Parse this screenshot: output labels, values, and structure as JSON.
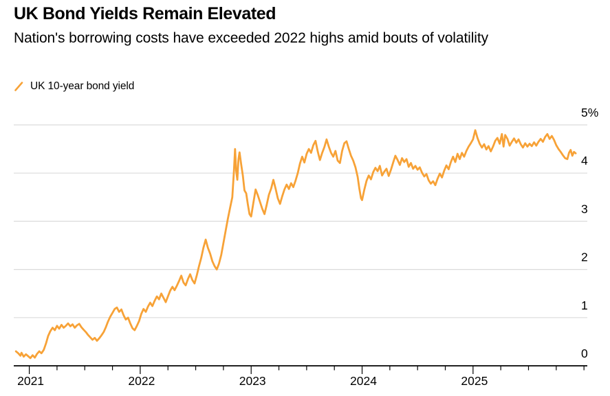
{
  "header": {
    "title": "UK Bond Yields Remain Elevated",
    "subtitle": "Nation's borrowing costs have exceeded 2022 highs amid bouts of volatility"
  },
  "legend": {
    "items": [
      {
        "label": "UK 10-year bond yield",
        "color": "#F7A237",
        "icon": "line-slash-icon"
      }
    ]
  },
  "colors": {
    "line": "#F7A237",
    "gridline": "#DBDBDB",
    "axis": "#000000",
    "text": "#000000",
    "background": "#FFFFFF"
  },
  "chart_data": {
    "type": "line",
    "title": "UK Bond Yields Remain Elevated",
    "subtitle": "Nation's borrowing costs have exceeded 2022 highs amid bouts of volatility",
    "xlabel": "",
    "ylabel": "",
    "xlim": [
      2020.86,
      2026.03
    ],
    "ylim": [
      0,
      5
    ],
    "grid": "horizontal",
    "legend_position": "top-left",
    "y_ticks": [
      {
        "value": 5,
        "label": "5%"
      },
      {
        "value": 4,
        "label": "4"
      },
      {
        "value": 3,
        "label": "3"
      },
      {
        "value": 2,
        "label": "2"
      },
      {
        "value": 1,
        "label": "1"
      },
      {
        "value": 0,
        "label": "0"
      }
    ],
    "x_ticks": [
      {
        "value": 2021,
        "label": "2021"
      },
      {
        "value": 2022,
        "label": "2022"
      },
      {
        "value": 2023,
        "label": "2023"
      },
      {
        "value": 2024,
        "label": "2024"
      },
      {
        "value": 2025,
        "label": "2025"
      }
    ],
    "x_minor_interval": 0.25,
    "x_tick_range": [
      2021,
      2026
    ],
    "series": [
      {
        "name": "UK 10-year bond yield",
        "color": "#F7A237",
        "points": [
          [
            2020.88,
            0.3
          ],
          [
            2020.9,
            0.26
          ],
          [
            2020.92,
            0.21
          ],
          [
            2020.93,
            0.27
          ],
          [
            2020.95,
            0.19
          ],
          [
            2020.97,
            0.24
          ],
          [
            2020.99,
            0.2
          ],
          [
            2021.01,
            0.16
          ],
          [
            2021.03,
            0.22
          ],
          [
            2021.05,
            0.17
          ],
          [
            2021.07,
            0.25
          ],
          [
            2021.09,
            0.3
          ],
          [
            2021.11,
            0.26
          ],
          [
            2021.13,
            0.33
          ],
          [
            2021.15,
            0.46
          ],
          [
            2021.17,
            0.62
          ],
          [
            2021.19,
            0.72
          ],
          [
            2021.21,
            0.79
          ],
          [
            2021.23,
            0.74
          ],
          [
            2021.25,
            0.83
          ],
          [
            2021.27,
            0.77
          ],
          [
            2021.29,
            0.85
          ],
          [
            2021.31,
            0.79
          ],
          [
            2021.33,
            0.83
          ],
          [
            2021.35,
            0.88
          ],
          [
            2021.37,
            0.82
          ],
          [
            2021.39,
            0.86
          ],
          [
            2021.41,
            0.79
          ],
          [
            2021.43,
            0.84
          ],
          [
            2021.45,
            0.87
          ],
          [
            2021.47,
            0.8
          ],
          [
            2021.49,
            0.75
          ],
          [
            2021.51,
            0.7
          ],
          [
            2021.53,
            0.64
          ],
          [
            2021.55,
            0.59
          ],
          [
            2021.57,
            0.54
          ],
          [
            2021.59,
            0.58
          ],
          [
            2021.61,
            0.52
          ],
          [
            2021.63,
            0.57
          ],
          [
            2021.65,
            0.63
          ],
          [
            2021.67,
            0.7
          ],
          [
            2021.69,
            0.8
          ],
          [
            2021.71,
            0.92
          ],
          [
            2021.73,
            1.02
          ],
          [
            2021.75,
            1.1
          ],
          [
            2021.77,
            1.18
          ],
          [
            2021.79,
            1.21
          ],
          [
            2021.81,
            1.12
          ],
          [
            2021.83,
            1.17
          ],
          [
            2021.85,
            1.05
          ],
          [
            2021.87,
            0.96
          ],
          [
            2021.89,
            1.0
          ],
          [
            2021.91,
            0.88
          ],
          [
            2021.93,
            0.78
          ],
          [
            2021.95,
            0.74
          ],
          [
            2021.97,
            0.83
          ],
          [
            2021.99,
            0.93
          ],
          [
            2022.01,
            1.08
          ],
          [
            2022.03,
            1.18
          ],
          [
            2022.05,
            1.12
          ],
          [
            2022.07,
            1.23
          ],
          [
            2022.09,
            1.31
          ],
          [
            2022.11,
            1.24
          ],
          [
            2022.13,
            1.35
          ],
          [
            2022.15,
            1.44
          ],
          [
            2022.17,
            1.38
          ],
          [
            2022.19,
            1.5
          ],
          [
            2022.21,
            1.41
          ],
          [
            2022.23,
            1.32
          ],
          [
            2022.25,
            1.44
          ],
          [
            2022.27,
            1.56
          ],
          [
            2022.29,
            1.64
          ],
          [
            2022.31,
            1.57
          ],
          [
            2022.33,
            1.66
          ],
          [
            2022.35,
            1.76
          ],
          [
            2022.37,
            1.87
          ],
          [
            2022.39,
            1.73
          ],
          [
            2022.41,
            1.67
          ],
          [
            2022.43,
            1.8
          ],
          [
            2022.45,
            1.9
          ],
          [
            2022.47,
            1.78
          ],
          [
            2022.49,
            1.71
          ],
          [
            2022.51,
            1.88
          ],
          [
            2022.53,
            2.07
          ],
          [
            2022.55,
            2.24
          ],
          [
            2022.57,
            2.45
          ],
          [
            2022.59,
            2.62
          ],
          [
            2022.61,
            2.45
          ],
          [
            2022.63,
            2.33
          ],
          [
            2022.65,
            2.17
          ],
          [
            2022.67,
            2.07
          ],
          [
            2022.69,
            2.0
          ],
          [
            2022.71,
            2.12
          ],
          [
            2022.73,
            2.3
          ],
          [
            2022.75,
            2.55
          ],
          [
            2022.77,
            2.8
          ],
          [
            2022.79,
            3.05
          ],
          [
            2022.81,
            3.28
          ],
          [
            2022.83,
            3.5
          ],
          [
            2022.845,
            4.05
          ],
          [
            2022.855,
            4.5
          ],
          [
            2022.865,
            4.05
          ],
          [
            2022.875,
            3.86
          ],
          [
            2022.885,
            4.28
          ],
          [
            2022.895,
            4.43
          ],
          [
            2022.91,
            4.18
          ],
          [
            2022.925,
            3.95
          ],
          [
            2022.94,
            3.64
          ],
          [
            2022.955,
            3.58
          ],
          [
            2022.97,
            3.35
          ],
          [
            2022.985,
            3.15
          ],
          [
            2023.0,
            3.1
          ],
          [
            2023.02,
            3.38
          ],
          [
            2023.04,
            3.66
          ],
          [
            2023.06,
            3.54
          ],
          [
            2023.08,
            3.4
          ],
          [
            2023.1,
            3.26
          ],
          [
            2023.12,
            3.15
          ],
          [
            2023.14,
            3.34
          ],
          [
            2023.16,
            3.55
          ],
          [
            2023.18,
            3.68
          ],
          [
            2023.2,
            3.86
          ],
          [
            2023.22,
            3.68
          ],
          [
            2023.24,
            3.48
          ],
          [
            2023.26,
            3.36
          ],
          [
            2023.28,
            3.52
          ],
          [
            2023.3,
            3.66
          ],
          [
            2023.32,
            3.76
          ],
          [
            2023.34,
            3.67
          ],
          [
            2023.36,
            3.79
          ],
          [
            2023.38,
            3.71
          ],
          [
            2023.4,
            3.84
          ],
          [
            2023.42,
            4.0
          ],
          [
            2023.44,
            4.2
          ],
          [
            2023.46,
            4.34
          ],
          [
            2023.48,
            4.22
          ],
          [
            2023.5,
            4.4
          ],
          [
            2023.52,
            4.5
          ],
          [
            2023.54,
            4.42
          ],
          [
            2023.56,
            4.58
          ],
          [
            2023.58,
            4.67
          ],
          [
            2023.6,
            4.45
          ],
          [
            2023.62,
            4.27
          ],
          [
            2023.64,
            4.42
          ],
          [
            2023.66,
            4.54
          ],
          [
            2023.68,
            4.7
          ],
          [
            2023.7,
            4.55
          ],
          [
            2023.72,
            4.42
          ],
          [
            2023.74,
            4.34
          ],
          [
            2023.76,
            4.46
          ],
          [
            2023.78,
            4.26
          ],
          [
            2023.8,
            4.21
          ],
          [
            2023.82,
            4.46
          ],
          [
            2023.84,
            4.62
          ],
          [
            2023.86,
            4.66
          ],
          [
            2023.88,
            4.5
          ],
          [
            2023.9,
            4.36
          ],
          [
            2023.92,
            4.26
          ],
          [
            2023.94,
            4.12
          ],
          [
            2023.96,
            3.92
          ],
          [
            2023.975,
            3.68
          ],
          [
            2023.99,
            3.48
          ],
          [
            2024.0,
            3.44
          ],
          [
            2024.02,
            3.66
          ],
          [
            2024.04,
            3.84
          ],
          [
            2024.06,
            3.95
          ],
          [
            2024.08,
            3.87
          ],
          [
            2024.1,
            4.02
          ],
          [
            2024.12,
            4.11
          ],
          [
            2024.14,
            4.04
          ],
          [
            2024.16,
            4.15
          ],
          [
            2024.18,
            3.95
          ],
          [
            2024.2,
            4.03
          ],
          [
            2024.22,
            4.09
          ],
          [
            2024.24,
            3.94
          ],
          [
            2024.26,
            4.07
          ],
          [
            2024.28,
            4.22
          ],
          [
            2024.3,
            4.36
          ],
          [
            2024.32,
            4.27
          ],
          [
            2024.34,
            4.17
          ],
          [
            2024.36,
            4.31
          ],
          [
            2024.38,
            4.23
          ],
          [
            2024.4,
            4.29
          ],
          [
            2024.42,
            4.13
          ],
          [
            2024.44,
            4.21
          ],
          [
            2024.46,
            4.09
          ],
          [
            2024.48,
            4.15
          ],
          [
            2024.5,
            4.07
          ],
          [
            2024.52,
            4.12
          ],
          [
            2024.54,
            4.01
          ],
          [
            2024.56,
            3.93
          ],
          [
            2024.58,
            3.98
          ],
          [
            2024.6,
            3.85
          ],
          [
            2024.62,
            3.78
          ],
          [
            2024.64,
            3.83
          ],
          [
            2024.66,
            3.75
          ],
          [
            2024.68,
            3.88
          ],
          [
            2024.7,
            3.99
          ],
          [
            2024.72,
            3.91
          ],
          [
            2024.74,
            4.05
          ],
          [
            2024.76,
            4.16
          ],
          [
            2024.78,
            4.08
          ],
          [
            2024.8,
            4.23
          ],
          [
            2024.82,
            4.34
          ],
          [
            2024.84,
            4.23
          ],
          [
            2024.86,
            4.4
          ],
          [
            2024.88,
            4.29
          ],
          [
            2024.9,
            4.42
          ],
          [
            2024.92,
            4.34
          ],
          [
            2024.94,
            4.46
          ],
          [
            2024.96,
            4.55
          ],
          [
            2024.98,
            4.62
          ],
          [
            2025.0,
            4.7
          ],
          [
            2025.02,
            4.89
          ],
          [
            2025.04,
            4.73
          ],
          [
            2025.06,
            4.61
          ],
          [
            2025.08,
            4.53
          ],
          [
            2025.1,
            4.6
          ],
          [
            2025.12,
            4.49
          ],
          [
            2025.14,
            4.56
          ],
          [
            2025.16,
            4.45
          ],
          [
            2025.18,
            4.55
          ],
          [
            2025.2,
            4.67
          ],
          [
            2025.22,
            4.73
          ],
          [
            2025.24,
            4.61
          ],
          [
            2025.26,
            4.81
          ],
          [
            2025.275,
            4.55
          ],
          [
            2025.29,
            4.79
          ],
          [
            2025.31,
            4.71
          ],
          [
            2025.33,
            4.57
          ],
          [
            2025.35,
            4.65
          ],
          [
            2025.37,
            4.72
          ],
          [
            2025.39,
            4.63
          ],
          [
            2025.41,
            4.7
          ],
          [
            2025.43,
            4.6
          ],
          [
            2025.45,
            4.53
          ],
          [
            2025.47,
            4.62
          ],
          [
            2025.49,
            4.55
          ],
          [
            2025.51,
            4.61
          ],
          [
            2025.53,
            4.56
          ],
          [
            2025.55,
            4.64
          ],
          [
            2025.57,
            4.57
          ],
          [
            2025.59,
            4.65
          ],
          [
            2025.61,
            4.71
          ],
          [
            2025.63,
            4.65
          ],
          [
            2025.65,
            4.75
          ],
          [
            2025.67,
            4.81
          ],
          [
            2025.69,
            4.71
          ],
          [
            2025.71,
            4.77
          ],
          [
            2025.73,
            4.69
          ],
          [
            2025.75,
            4.58
          ],
          [
            2025.77,
            4.5
          ],
          [
            2025.79,
            4.44
          ],
          [
            2025.81,
            4.37
          ],
          [
            2025.83,
            4.31
          ],
          [
            2025.85,
            4.29
          ],
          [
            2025.865,
            4.42
          ],
          [
            2025.88,
            4.48
          ],
          [
            2025.895,
            4.36
          ],
          [
            2025.91,
            4.44
          ],
          [
            2025.925,
            4.41
          ]
        ]
      }
    ]
  }
}
